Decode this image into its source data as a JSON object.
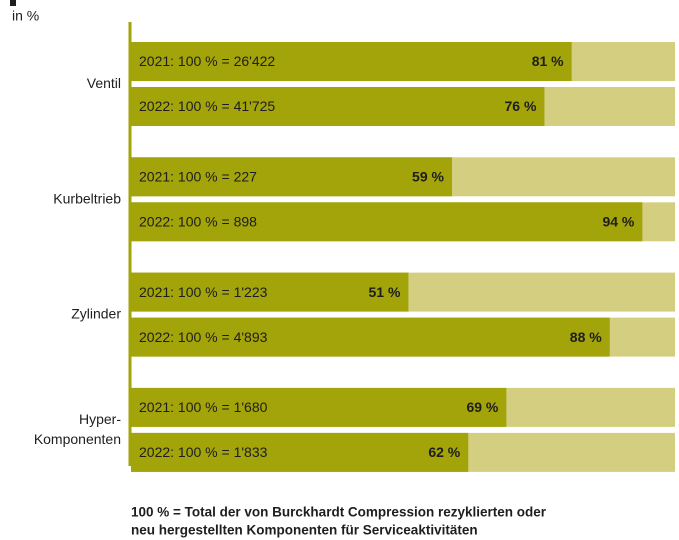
{
  "chart_data": {
    "type": "bar",
    "orientation": "horizontal",
    "subtitle": "in %",
    "categories": [
      "Ventil",
      "Kurbeltrieb",
      "Zylinder",
      "Hyper-\nKomponenten"
    ],
    "series": [
      {
        "color": "#a3a30a",
        "values": [
          81,
          59,
          51,
          69
        ],
        "value_labels": [
          "81 %",
          "59 %",
          "51 %",
          "69 %"
        ],
        "labels": [
          "2021: 100 % = 26'422",
          "2021: 100 % = 227",
          "2021: 100 % = 1'223",
          "2021: 100 % = 1'680"
        ]
      },
      {
        "color": "#a3a30a",
        "values": [
          76,
          94,
          88,
          62
        ],
        "value_labels": [
          "76 %",
          "94 %",
          "88 %",
          "62 %"
        ],
        "labels": [
          "2022: 100 % = 41'725",
          "2022: 100 % = 898",
          "2022: 100 % = 4'893",
          "2022: 100 % = 1'833"
        ]
      }
    ],
    "track_color": "#d4cf80",
    "xlim": [
      0,
      100
    ],
    "footnote": [
      "100 % = Total der von Burckhardt Compression rezyklierten oder",
      "neu hergestellten Komponenten für Serviceaktivitäten"
    ]
  }
}
